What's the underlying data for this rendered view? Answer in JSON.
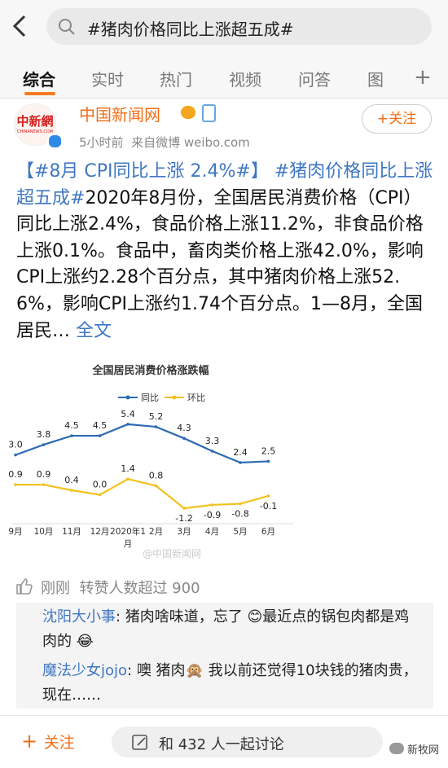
{
  "search": {
    "query": "#猪肉价格同比上涨超五成#"
  },
  "tabs": [
    "综合",
    "实时",
    "热门",
    "视频",
    "问答",
    "图"
  ],
  "post": {
    "author": "中国新闻网",
    "avatar_text": "中新網",
    "avatar_subtext": "CHINANEWS.COM",
    "follow": "+关注",
    "meta": "5小时前  来自微博 weibo.com",
    "hashtag_1": "【#8月 CPI同比上涨 2.4%#】",
    "hashtag_2": "#猪肉价格同比上涨超五成#",
    "text": "2020年8月份，全国居民消费价格（CPI）同比上涨2.4%，食品价格上涨11.2%，非食品价格上涨0.1%。食品中，畜肉类价格上涨42.0%，影响CPI上涨约2.28个百分点，其中猪肉价格上涨52.6%，影响CPI上涨约1.74个百分点。1—8月，全国居民…",
    "more": "全文"
  },
  "chart_data": {
    "type": "line",
    "title": "全国居民消费价格涨跌幅",
    "categories": [
      "9月",
      "10月",
      "11月",
      "12月",
      "2020年1月",
      "2月",
      "3月",
      "4月",
      "5月",
      "6月"
    ],
    "series": [
      {
        "name": "同比",
        "color": "#2e6bb3",
        "values": [
          3.0,
          3.8,
          4.5,
          4.5,
          5.4,
          5.2,
          4.3,
          3.3,
          2.4,
          2.5
        ],
        "value_labels": [
          "3.0",
          "3.8",
          "4.5",
          "4.5",
          "5.4",
          "5.2",
          "4.3",
          "3.3",
          "2.4",
          "2.5"
        ]
      },
      {
        "name": "环比",
        "color": "#f2c21b",
        "values": [
          0.9,
          0.9,
          0.4,
          0.0,
          1.4,
          0.8,
          -1.2,
          -0.9,
          -0.8,
          -0.1
        ],
        "value_labels": [
          "0.9",
          "0.9",
          "0.4",
          "0.0",
          "1.4",
          "0.8",
          "-1.2",
          "-0.9",
          "-0.8",
          "-0.1"
        ]
      }
    ],
    "watermark": "@中国新闻网"
  },
  "engagement": {
    "likes": "刚刚  转赞人数超过 900"
  },
  "comments": [
    {
      "user": "沈阳大小事",
      "text": ": 猪肉啥味道，忘了 😊最近点的锅包肉都是鸡肉的 😂"
    },
    {
      "user": "魔法少女jojo",
      "text": ": 噢 猪肉🙊 我以前还觉得10块钱的猪肉贵，现在……"
    }
  ],
  "footer": {
    "follow": "关注",
    "discuss": "和 432 人一起讨论",
    "watermark": "新牧网"
  }
}
